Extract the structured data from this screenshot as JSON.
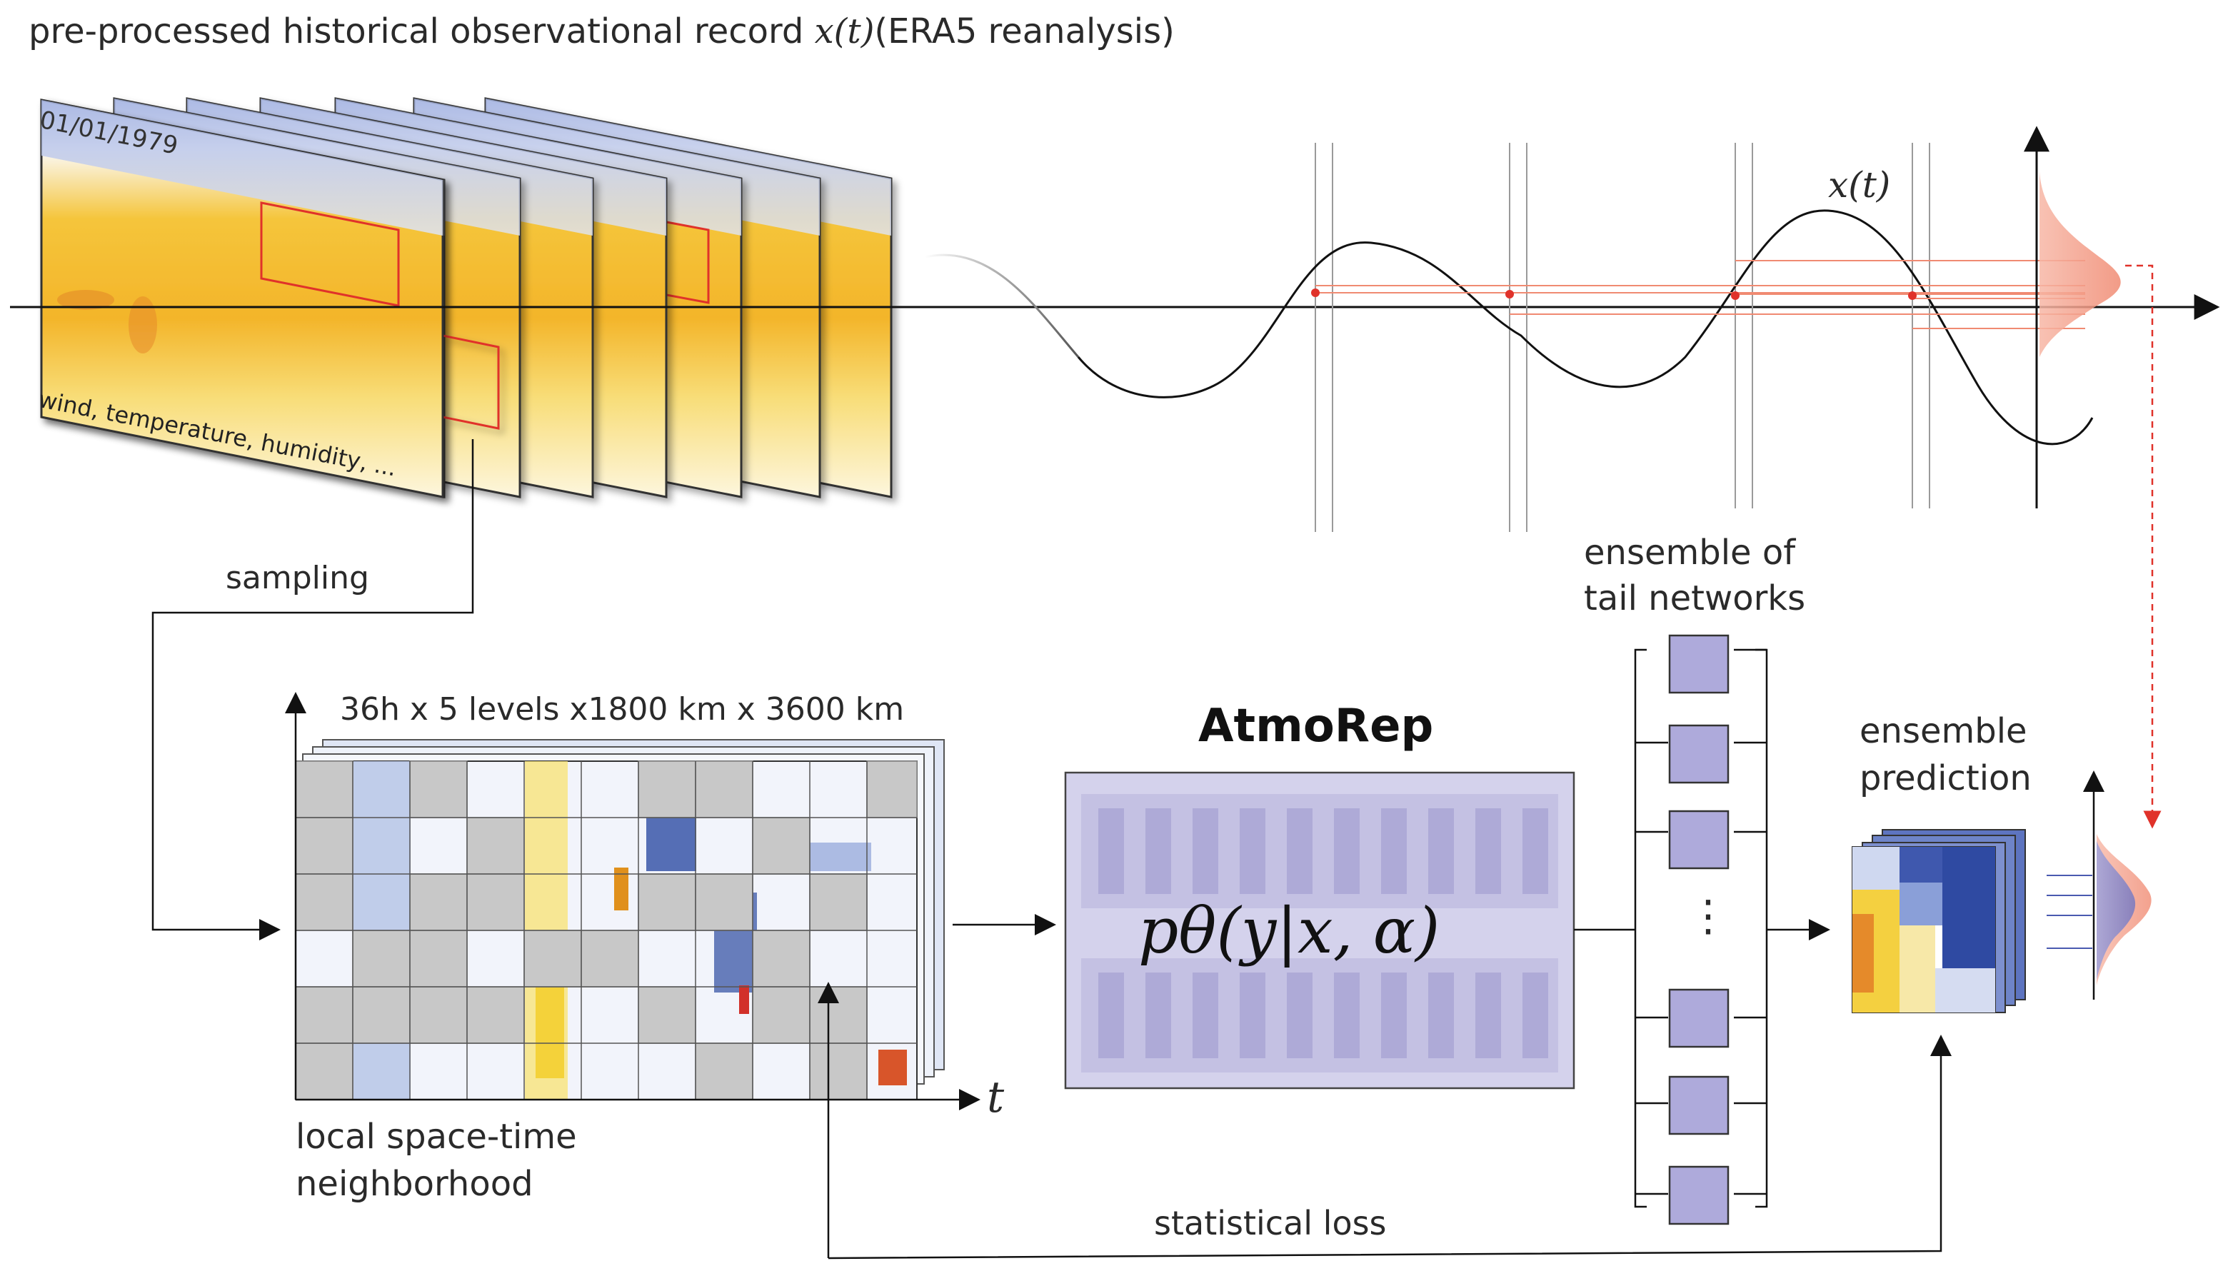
{
  "title": {
    "prefix": "pre-processed historical observational record",
    "math": "x(t)",
    "suffix": "(ERA5 reanalysis)"
  },
  "frames": {
    "date": "01/01/1979",
    "variables": "wind, temperature, humidity, ..."
  },
  "curve": {
    "label": "x(t)"
  },
  "labels": {
    "sampling": "sampling",
    "dims": "36h x 5 levels x1800 km x 3600 km",
    "axis_t": "t",
    "neighborhood_line1": "local space-time",
    "neighborhood_line2": "neighborhood",
    "model_name": "AtmoRep",
    "model_formula": "pθ(y|x, α)",
    "tail_line1": "ensemble of",
    "tail_line2": "tail networks",
    "ellipsis": "⋮",
    "prediction_line1": "ensemble",
    "prediction_line2": "prediction",
    "loss": "statistical loss"
  },
  "colors": {
    "field_yellow": "#f7c83a",
    "field_blue": "#9fb3de",
    "mask_gray": "#c8c8c8",
    "model_purple": "#a9a5d2",
    "tail_box": "#aeaadb",
    "dist_pink": "#f6a08a",
    "dist_blue": "#8a8fd0",
    "sample_red": "#e0322a"
  }
}
